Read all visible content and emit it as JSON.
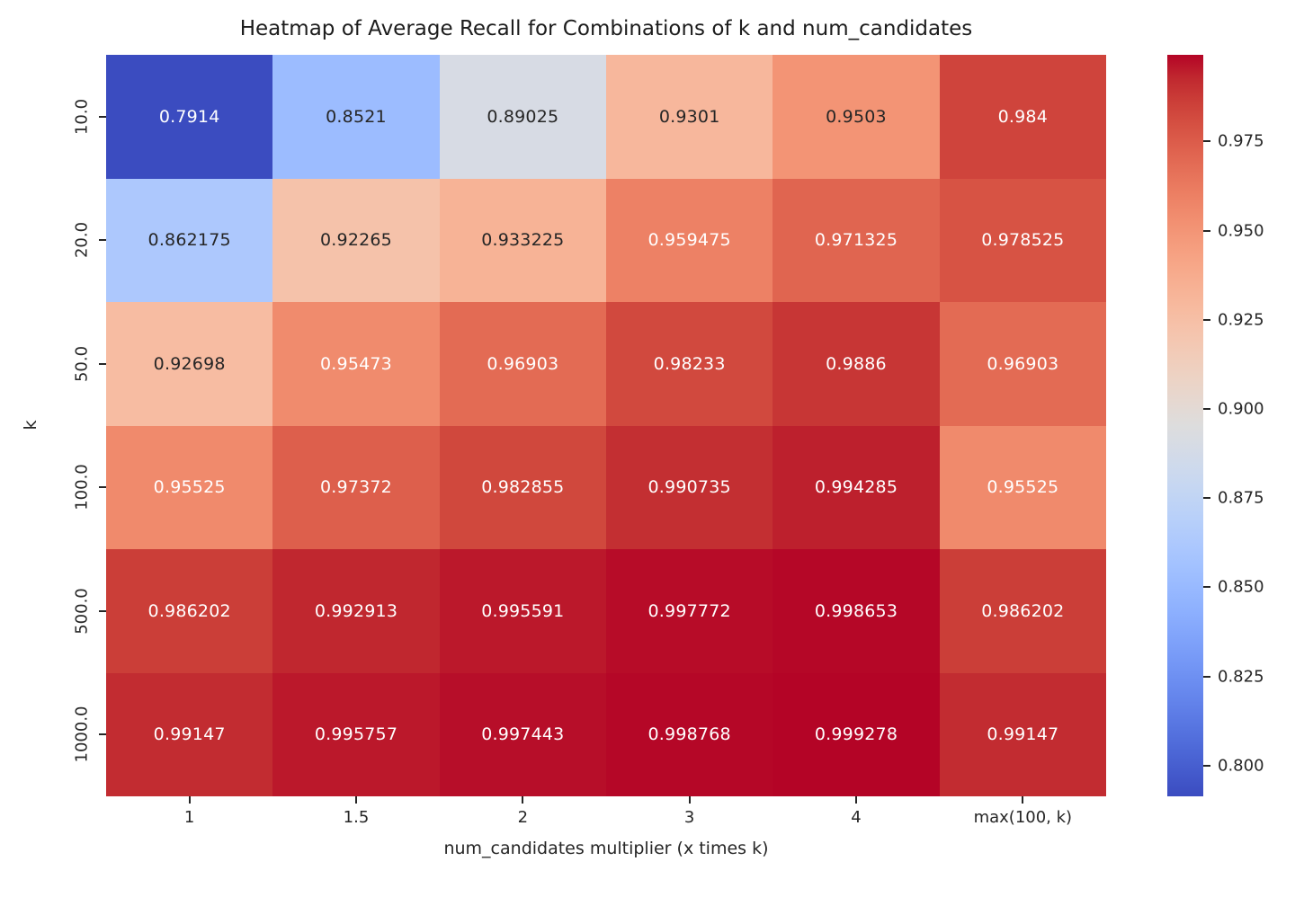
{
  "chart_data": {
    "type": "heatmap",
    "title": "Heatmap of Average Recall for Combinations of k and num_candidates",
    "xlabel": "num_candidates multiplier (x times k)",
    "ylabel": "k",
    "x_categories": [
      "1",
      "1.5",
      "2",
      "3",
      "4",
      "max(100, k)"
    ],
    "y_categories": [
      "10.0",
      "20.0",
      "50.0",
      "100.0",
      "500.0",
      "1000.0"
    ],
    "cell_labels": [
      [
        "0.7914",
        "0.8521",
        "0.89025",
        "0.9301",
        "0.9503",
        "0.984"
      ],
      [
        "0.862175",
        "0.92265",
        "0.933225",
        "0.959475",
        "0.971325",
        "0.978525"
      ],
      [
        "0.92698",
        "0.95473",
        "0.96903",
        "0.98233",
        "0.9886",
        "0.96903"
      ],
      [
        "0.95525",
        "0.97372",
        "0.982855",
        "0.990735",
        "0.994285",
        "0.95525"
      ],
      [
        "0.986202",
        "0.992913",
        "0.995591",
        "0.997772",
        "0.998653",
        "0.986202"
      ],
      [
        "0.99147",
        "0.995757",
        "0.997443",
        "0.998768",
        "0.999278",
        "0.99147"
      ]
    ],
    "vmin": 0.7914,
    "vmax": 0.999278,
    "colorbar_ticks": [
      "0.975",
      "0.950",
      "0.925",
      "0.900",
      "0.875",
      "0.850",
      "0.825",
      "0.800"
    ],
    "legend_position": "right-colorbar",
    "grid": false,
    "colormap": {
      "name": "coolwarm",
      "stops": [
        [
          59,
          76,
          192
        ],
        [
          68,
          90,
          204
        ],
        [
          77,
          104,
          215
        ],
        [
          87,
          117,
          225
        ],
        [
          98,
          130,
          234
        ],
        [
          108,
          142,
          241
        ],
        [
          119,
          154,
          247
        ],
        [
          130,
          165,
          251
        ],
        [
          141,
          176,
          254
        ],
        [
          152,
          185,
          255
        ],
        [
          163,
          194,
          255
        ],
        [
          174,
          201,
          253
        ],
        [
          184,
          208,
          249
        ],
        [
          194,
          213,
          244
        ],
        [
          204,
          217,
          238
        ],
        [
          213,
          219,
          230
        ],
        [
          221,
          221,
          221
        ],
        [
          229,
          216,
          209
        ],
        [
          236,
          211,
          197
        ],
        [
          241,
          204,
          185
        ],
        [
          245,
          196,
          173
        ],
        [
          247,
          187,
          160
        ],
        [
          247,
          177,
          148
        ],
        [
          247,
          166,
          135
        ],
        [
          244,
          154,
          123
        ],
        [
          241,
          141,
          111
        ],
        [
          236,
          127,
          99
        ],
        [
          229,
          112,
          88
        ],
        [
          222,
          96,
          77
        ],
        [
          213,
          80,
          66
        ],
        [
          203,
          62,
          56
        ],
        [
          192,
          40,
          47
        ],
        [
          180,
          4,
          38
        ]
      ]
    },
    "colors": {
      "annotation_on_dark": "#ffffff",
      "annotation_on_light": "#262626",
      "axis_text": "#262626",
      "background": "#ffffff"
    }
  }
}
